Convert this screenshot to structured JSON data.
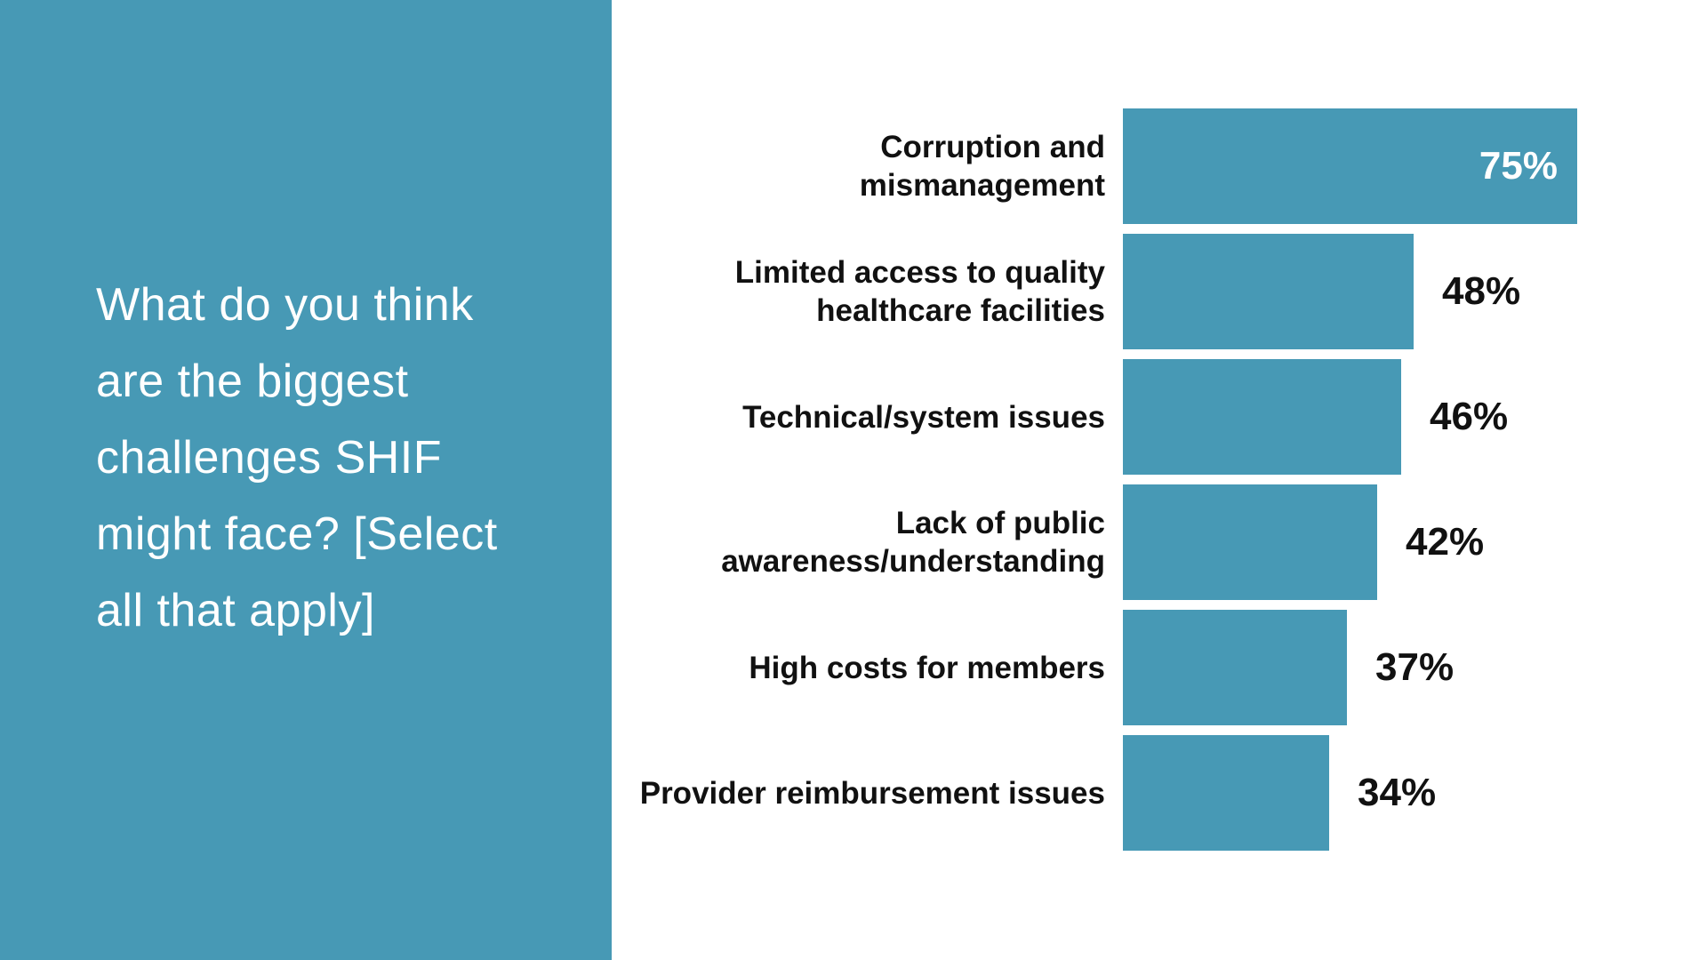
{
  "colors": {
    "accent_teal": "#4799B5",
    "label_black": "#111111",
    "value_inside_white": "#FFFFFF",
    "background": "#FFFFFF"
  },
  "left_panel": {
    "question": "What do you think are the biggest challenges SHIF might face? [Select all that apply]",
    "question_lines": [
      "What do you think",
      "are the biggest",
      "challenges SHIF",
      "might face? [Select",
      "all that apply]"
    ]
  },
  "chart_data": {
    "type": "bar",
    "orientation": "horizontal",
    "title": "",
    "xlabel": "",
    "ylabel": "",
    "axis_shown": false,
    "grid": false,
    "legend": null,
    "xlim": [
      0,
      80
    ],
    "bar_color": "#4799B5",
    "categories": [
      "Corruption and mismanagement",
      "Limited access to quality healthcare facilities",
      "Technical/system issues",
      "Lack of public awareness/understanding",
      "High costs for members",
      "Provider reimbursement issues"
    ],
    "values": [
      75,
      48,
      46,
      42,
      37,
      34
    ],
    "items": [
      {
        "label_lines": [
          "Corruption and",
          "mismanagement"
        ],
        "value": 75,
        "value_label": "75%",
        "value_inside": true
      },
      {
        "label_lines": [
          "Limited access to quality",
          "healthcare facilities"
        ],
        "value": 48,
        "value_label": "48%",
        "value_inside": false
      },
      {
        "label_lines": [
          "Technical/system issues"
        ],
        "value": 46,
        "value_label": "46%",
        "value_inside": false
      },
      {
        "label_lines": [
          "Lack of public",
          "awareness/understanding"
        ],
        "value": 42,
        "value_label": "42%",
        "value_inside": false
      },
      {
        "label_lines": [
          "High costs for members"
        ],
        "value": 37,
        "value_label": "37%",
        "value_inside": false
      },
      {
        "label_lines": [
          "Provider reimbursement issues"
        ],
        "value": 34,
        "value_label": "34%",
        "value_inside": false
      }
    ]
  }
}
